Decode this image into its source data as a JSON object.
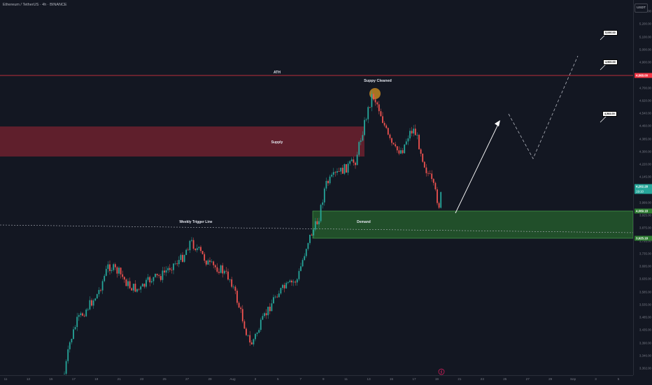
{
  "header": {
    "symbol_title": "Ethereum / TetherUS · 4h · BINANCE",
    "currency": "USDT"
  },
  "price_axis": {
    "labels": [
      "5,250.00",
      "5,200.00",
      "5,100.00",
      "5,000.00",
      "4,900.00",
      "4,800.00",
      "4,700.00",
      "4,620.00",
      "4,540.00",
      "4,460.00",
      "4,385.00",
      "4,300.00",
      "4,220.00",
      "4,145.00",
      "4,070.00",
      "3,999.00",
      "3,925.00",
      "3,875.00",
      "3,795.00",
      "3,735.00",
      "3,695.00",
      "3,635.00",
      "3,585.00",
      "3,535.00",
      "3,485.00",
      "3,435.00",
      "3,390.00",
      "3,346.00",
      "3,302.00"
    ],
    "tags": {
      "ath": "4,868.00",
      "current": "4,202.28",
      "countdown": "19:10",
      "demand_top": "4,069.18",
      "demand_bottom": "3,925.18"
    }
  },
  "time_axis": {
    "labels": [
      "11",
      "13",
      "15",
      "17",
      "19",
      "21",
      "23",
      "25",
      "27",
      "29",
      "Aug",
      "3",
      "5",
      "7",
      "9",
      "11",
      "13",
      "15",
      "17",
      "19",
      "21",
      "23",
      "25",
      "27",
      "29",
      "Sep",
      "3",
      "5"
    ]
  },
  "annotations": {
    "ath_label": "ATH",
    "supply_label": "Supply",
    "demand_label": "Demand",
    "trigger_label": "Weekly Trigger Line",
    "supply_cleaned": "Suppy Cleaned",
    "target_1": "4,584.00",
    "target_2": "4,900.00",
    "target_3": "5,090.00"
  },
  "colors": {
    "up": "#26a69a",
    "down": "#ef5350",
    "ath_line": "#f23645",
    "supply": "#7a2330",
    "demand": "#2e7d32",
    "bg": "#131722"
  }
}
